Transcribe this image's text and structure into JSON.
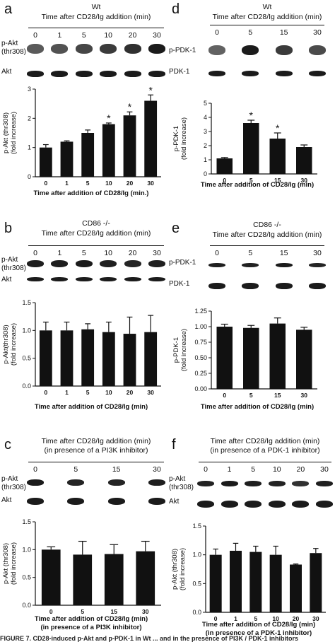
{
  "caption": "FIGURE 7.   CD28-induced p-Akt and p-PDK-1 in Wt ... and in the presence of PI3K / PDK-1 inhibitors",
  "chart_data": [
    {
      "id": "a",
      "type": "bar",
      "panel_label": "a",
      "header": "Wt",
      "header_line": "Time after CD28/Ig addition (min)",
      "lanes": [
        "0",
        "1",
        "5",
        "10",
        "20",
        "30"
      ],
      "blot_labels": [
        "p-Akt\n(thr308)",
        "Akt"
      ],
      "categories": [
        "0",
        "1",
        "5",
        "10",
        "20",
        "30"
      ],
      "values": [
        1.0,
        1.2,
        1.5,
        1.8,
        2.1,
        2.6
      ],
      "errors": [
        0.1,
        0.03,
        0.1,
        0.04,
        0.12,
        0.2
      ],
      "significant": [
        false,
        false,
        false,
        true,
        true,
        true
      ],
      "ylim": [
        0,
        3
      ],
      "yticks": [
        "0",
        "1",
        "2",
        "3"
      ],
      "ylabel": "p-Akt (thr308)\n(fold increase)",
      "xlabel": "Time after addition of CD28/Ig (min.)",
      "xlabel2": ""
    },
    {
      "id": "b",
      "type": "bar",
      "panel_label": "b",
      "header": "CD86 -/-",
      "header_line": "Time after CD28/Ig addition (min)",
      "lanes": [
        "0",
        "1",
        "5",
        "10",
        "20",
        "30"
      ],
      "blot_labels": [
        "p-Akt\n(thr308)",
        "Akt"
      ],
      "categories": [
        "0",
        "1",
        "5",
        "10",
        "20",
        "30"
      ],
      "values": [
        1.0,
        1.0,
        1.02,
        0.97,
        0.94,
        0.97
      ],
      "errors": [
        0.15,
        0.15,
        0.1,
        0.18,
        0.3,
        0.3
      ],
      "significant": [
        false,
        false,
        false,
        false,
        false,
        false
      ],
      "ylim": [
        0,
        1.5
      ],
      "yticks": [
        "0.0",
        "0.5",
        "1.0",
        "1.5"
      ],
      "ylabel": "p-Akt(thr308)\n(fold increase)",
      "xlabel": "Time after addition of CD28/Ig (min)",
      "xlabel2": ""
    },
    {
      "id": "c",
      "type": "bar",
      "panel_label": "c",
      "header": "",
      "header_line": "Time after CD28/Ig addition (min)",
      "header_line2": "(in presence of a PI3K inhibitor)",
      "lanes": [
        "0",
        "5",
        "15",
        "30"
      ],
      "blot_labels": [
        "p-Akt\n(thr308)",
        "Akt"
      ],
      "categories": [
        "0",
        "5",
        "15",
        "30"
      ],
      "values": [
        1.0,
        0.91,
        0.92,
        0.97
      ],
      "errors": [
        0.05,
        0.24,
        0.17,
        0.18
      ],
      "significant": [
        false,
        false,
        false,
        false
      ],
      "ylim": [
        0,
        1.5
      ],
      "yticks": [
        "0.0",
        "0.5",
        "1.0",
        "1.5"
      ],
      "ylabel": "p-Akt (thr308)\n(fold increase)",
      "xlabel": "Time after addition of CD28/Ig (min)",
      "xlabel2": "(in presence of a PI3K inhibitor)"
    },
    {
      "id": "d",
      "type": "bar",
      "panel_label": "d",
      "header": "Wt",
      "header_line": "Time after CD28/Ig addition (min)",
      "lanes": [
        "0",
        "5",
        "15",
        "30"
      ],
      "blot_labels": [
        "p-PDK-1",
        "PDK-1"
      ],
      "categories": [
        "0",
        "5",
        "15",
        "30"
      ],
      "values": [
        1.1,
        3.6,
        2.5,
        1.9
      ],
      "errors": [
        0.06,
        0.2,
        0.4,
        0.15
      ],
      "significant": [
        false,
        true,
        true,
        false
      ],
      "ylim": [
        0,
        5
      ],
      "yticks": [
        "0",
        "1",
        "2",
        "3",
        "4",
        "5"
      ],
      "ylabel": "p-PDK-1\n(fold increase)",
      "xlabel": "Time after addition of CD28/Ig (min)",
      "xlabel2": ""
    },
    {
      "id": "e",
      "type": "bar",
      "panel_label": "e",
      "header": "CD86 -/-",
      "header_line": "Time after CD28/Ig addition (min)",
      "lanes": [
        "0",
        "5",
        "15",
        "30"
      ],
      "blot_labels": [
        "p-PDK-1",
        "PDK-1"
      ],
      "categories": [
        "0",
        "5",
        "15",
        "30"
      ],
      "values": [
        1.0,
        0.98,
        1.05,
        0.95
      ],
      "errors": [
        0.04,
        0.04,
        0.09,
        0.04
      ],
      "significant": [
        false,
        false,
        false,
        false
      ],
      "ylim": [
        0,
        1.25
      ],
      "yticks": [
        "0.00",
        "0.25",
        "0.50",
        "0.75",
        "1.00",
        "1.25"
      ],
      "ylabel": "p-PDK-1\n(fold increase)",
      "xlabel": "Time after addition of CD28/Ig (min)",
      "xlabel2": ""
    },
    {
      "id": "f",
      "type": "bar",
      "panel_label": "f",
      "header": "",
      "header_line": "Time after CD28/Ig addition (min)",
      "header_line2": "(in presence of a PDK-1 inhibitor)",
      "lanes": [
        "0",
        "1",
        "5",
        "10",
        "20",
        "30"
      ],
      "blot_labels": [
        "p-Akt\n(thr308)",
        "Akt"
      ],
      "categories": [
        "0",
        "1",
        "5",
        "10",
        "20",
        "30"
      ],
      "values": [
        1.0,
        1.07,
        1.05,
        1.0,
        0.83,
        1.03
      ],
      "errors": [
        0.1,
        0.13,
        0.1,
        0.15,
        0.01,
        0.08
      ],
      "significant": [
        false,
        false,
        false,
        false,
        false,
        false
      ],
      "ylim": [
        0,
        1.5
      ],
      "yticks": [
        "0.0",
        "0.5",
        "1.0",
        "1.5"
      ],
      "ylabel": "p-Akt (thr308)\n(fold increase)",
      "xlabel": "Time after addition of CD28/Ig (min)",
      "xlabel2": "(in presence of a PDK-1 inhibitor)"
    }
  ]
}
